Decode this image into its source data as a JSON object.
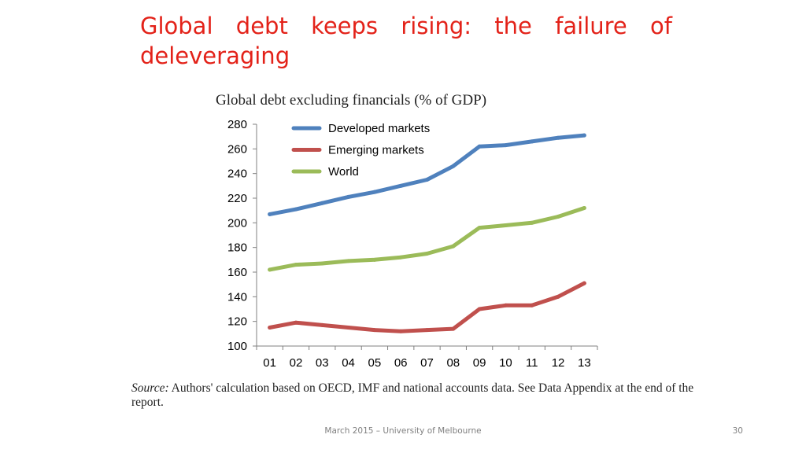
{
  "slide": {
    "title": "Global debt keeps rising: the failure of deleveraging",
    "footer": "March 2015 – University of Melbourne",
    "page_number": "30"
  },
  "source": {
    "prefix": "Source:",
    "text": " Authors' calculation based on OECD, IMF and national accounts data. See Data Appendix at the end of the report."
  },
  "chart_data": {
    "type": "line",
    "title": "Global debt excluding financials (% of GDP)",
    "xlabel": "",
    "ylabel": "",
    "categories": [
      "01",
      "02",
      "03",
      "04",
      "05",
      "06",
      "07",
      "08",
      "09",
      "10",
      "11",
      "12",
      "13"
    ],
    "ylim": [
      100,
      280
    ],
    "yticks": [
      100,
      120,
      140,
      160,
      180,
      200,
      220,
      240,
      260,
      280
    ],
    "legend_position": "top-left",
    "grid": false,
    "series": [
      {
        "name": "Developed markets",
        "color": "#4f81bd",
        "values": [
          207,
          211,
          216,
          221,
          225,
          230,
          235,
          246,
          262,
          263,
          266,
          269,
          271
        ]
      },
      {
        "name": "Emerging markets",
        "color": "#c0504d",
        "values": [
          115,
          119,
          117,
          115,
          113,
          112,
          113,
          114,
          130,
          133,
          133,
          140,
          151
        ]
      },
      {
        "name": "World",
        "color": "#9bbb59",
        "values": [
          162,
          166,
          167,
          169,
          170,
          172,
          175,
          181,
          196,
          198,
          200,
          205,
          212
        ]
      }
    ]
  }
}
